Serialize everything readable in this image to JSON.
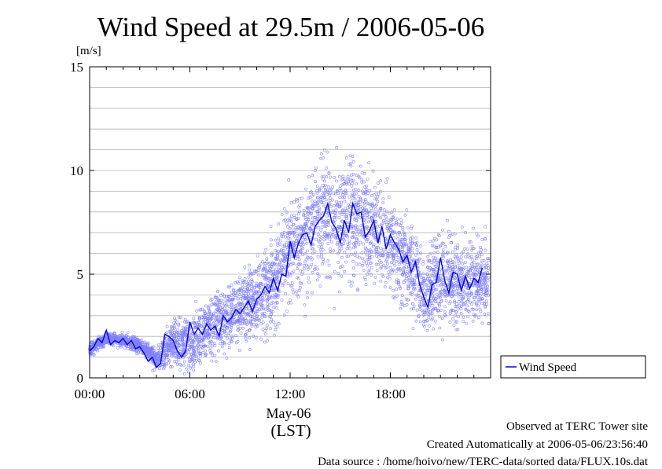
{
  "colors": {
    "scatter": "#8080ff",
    "line": "#0000e6",
    "grid": "#b4b4b4",
    "axis": "#000000",
    "background": "#ffffff"
  },
  "chart_data": {
    "type": "scatter",
    "title": "Wind Speed at 29.5m / 2006-05-06",
    "ylabel": "[m/s]",
    "xlabel": "(LST)",
    "date_label": "May-06",
    "ylim": [
      0,
      15
    ],
    "xlim_hours": [
      0,
      24
    ],
    "y_ticks": [
      "0",
      "5",
      "10",
      "15"
    ],
    "y_gridlines": [
      1,
      2,
      3,
      4,
      5,
      6,
      7,
      8,
      9,
      10,
      11,
      12,
      13,
      14
    ],
    "x_ticks": [
      {
        "hour": 0,
        "label": "00:00"
      },
      {
        "hour": 6,
        "label": "06:00"
      },
      {
        "hour": 12,
        "label": "12:00"
      },
      {
        "hour": 18,
        "label": "18:00"
      }
    ],
    "grid": true,
    "legend": {
      "placement": "right-outside",
      "entries": [
        "Wind Speed"
      ]
    },
    "series": [
      {
        "name": "Wind Speed",
        "style": "line",
        "x": [
          0.0,
          0.25,
          0.5,
          0.75,
          1.0,
          1.25,
          1.5,
          1.75,
          2.0,
          2.25,
          2.5,
          2.75,
          3.0,
          3.25,
          3.5,
          3.75,
          4.0,
          4.25,
          4.5,
          4.75,
          5.0,
          5.25,
          5.5,
          5.75,
          6.0,
          6.25,
          6.5,
          6.75,
          7.0,
          7.25,
          7.5,
          7.75,
          8.0,
          8.25,
          8.5,
          8.75,
          9.0,
          9.25,
          9.5,
          9.75,
          10.0,
          10.25,
          10.5,
          10.75,
          11.0,
          11.25,
          11.5,
          11.75,
          12.0,
          12.25,
          12.5,
          12.75,
          13.0,
          13.25,
          13.5,
          13.75,
          14.0,
          14.25,
          14.5,
          14.75,
          15.0,
          15.25,
          15.5,
          15.75,
          16.0,
          16.25,
          16.5,
          16.75,
          17.0,
          17.25,
          17.5,
          17.75,
          18.0,
          18.25,
          18.5,
          18.75,
          19.0,
          19.25,
          19.5,
          19.75,
          20.0,
          20.25,
          20.5,
          20.75,
          21.0,
          21.25,
          21.5,
          21.75,
          22.0,
          22.25,
          22.5,
          22.75,
          23.0,
          23.25,
          23.5
        ],
        "values": [
          1.3,
          1.5,
          1.9,
          1.7,
          2.3,
          1.6,
          1.8,
          1.7,
          1.9,
          1.6,
          1.8,
          1.4,
          1.5,
          1.2,
          0.8,
          1.0,
          0.5,
          0.7,
          2.1,
          2.0,
          1.8,
          1.3,
          1.0,
          1.3,
          2.7,
          2.1,
          2.4,
          2.1,
          2.6,
          2.3,
          2.5,
          2.0,
          3.0,
          2.7,
          2.9,
          3.3,
          3.1,
          3.4,
          3.7,
          3.2,
          3.8,
          4.0,
          4.4,
          4.1,
          4.8,
          4.2,
          5.0,
          4.9,
          6.6,
          5.8,
          6.5,
          6.9,
          7.0,
          6.4,
          7.3,
          7.6,
          7.8,
          8.4,
          7.5,
          7.2,
          6.5,
          7.6,
          7.0,
          8.4,
          7.9,
          8.0,
          6.8,
          7.1,
          7.6,
          6.5,
          7.3,
          6.2,
          6.9,
          6.5,
          6.2,
          5.6,
          5.9,
          5.1,
          5.6,
          4.5,
          3.9,
          3.4,
          4.5,
          4.6,
          5.8,
          4.7,
          4.1,
          5.1,
          5.0,
          4.2,
          4.9,
          4.3,
          4.8,
          4.6,
          5.3
        ]
      },
      {
        "name": "Wind Speed (10 s samples)",
        "style": "markers",
        "profile_hours": [
          0.0,
          1.0,
          2.0,
          3.0,
          4.0,
          5.0,
          6.0,
          7.0,
          8.0,
          9.0,
          10.0,
          11.0,
          12.0,
          13.0,
          14.0,
          15.0,
          16.0,
          17.0,
          18.0,
          19.0,
          20.0,
          21.0,
          22.0,
          23.0,
          23.9
        ],
        "profile_mean": [
          1.4,
          1.9,
          1.8,
          1.6,
          0.9,
          1.7,
          1.7,
          2.4,
          2.8,
          3.3,
          3.9,
          4.6,
          6.0,
          7.0,
          7.8,
          7.6,
          7.7,
          7.1,
          6.6,
          5.6,
          4.2,
          5.0,
          4.6,
          4.7,
          4.9
        ],
        "profile_spread": [
          0.25,
          0.25,
          0.25,
          0.3,
          0.4,
          0.9,
          1.0,
          1.1,
          1.2,
          1.3,
          1.5,
          1.7,
          2.0,
          2.2,
          2.3,
          2.3,
          2.2,
          2.0,
          1.9,
          1.8,
          1.7,
          1.8,
          1.7,
          1.7,
          1.7
        ]
      }
    ]
  },
  "footer": {
    "line1": "Observed at TERC Tower site",
    "line2": "Created Automatically at 2006-05-06/23:56:40",
    "line3": "Data source : /home/hoivo/new/TERC-data/sorted  data/FLUX.10s.dat"
  }
}
